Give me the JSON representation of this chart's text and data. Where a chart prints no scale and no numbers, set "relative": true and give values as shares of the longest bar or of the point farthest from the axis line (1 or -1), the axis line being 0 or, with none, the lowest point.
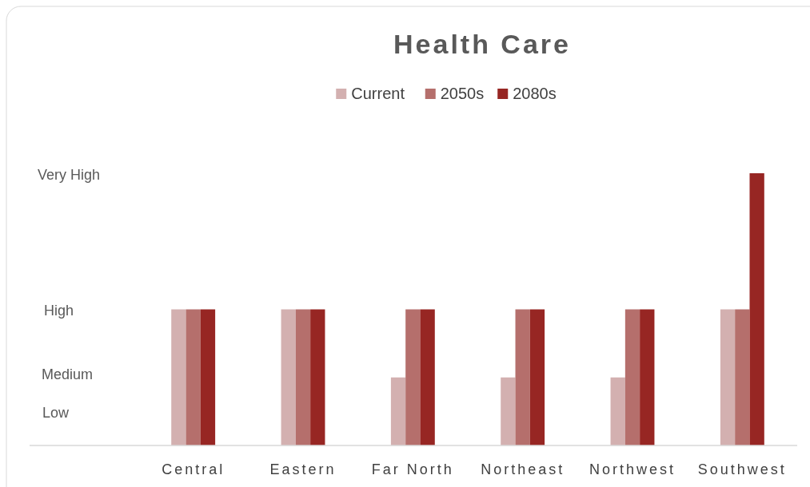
{
  "chart_data": {
    "type": "bar",
    "title": "Health Care",
    "categories": [
      "Central",
      "Eastern",
      "Far North",
      "Northeast",
      "Northwest",
      "Southwest"
    ],
    "series": [
      {
        "name": "Current",
        "color": "#d3b0b0",
        "values": [
          0.5,
          0.5,
          0.25,
          0.25,
          0.25,
          0.5
        ]
      },
      {
        "name": "2050s",
        "color": "#b56f6c",
        "values": [
          0.5,
          0.5,
          0.5,
          0.5,
          0.5,
          0.5
        ]
      },
      {
        "name": "2080s",
        "color": "#972623",
        "values": [
          0.5,
          0.5,
          0.5,
          0.5,
          0.5,
          1
        ]
      }
    ],
    "relative": true,
    "annotations": [
      "Very High",
      "High",
      "Medium",
      "Low"
    ],
    "legend": "top"
  }
}
